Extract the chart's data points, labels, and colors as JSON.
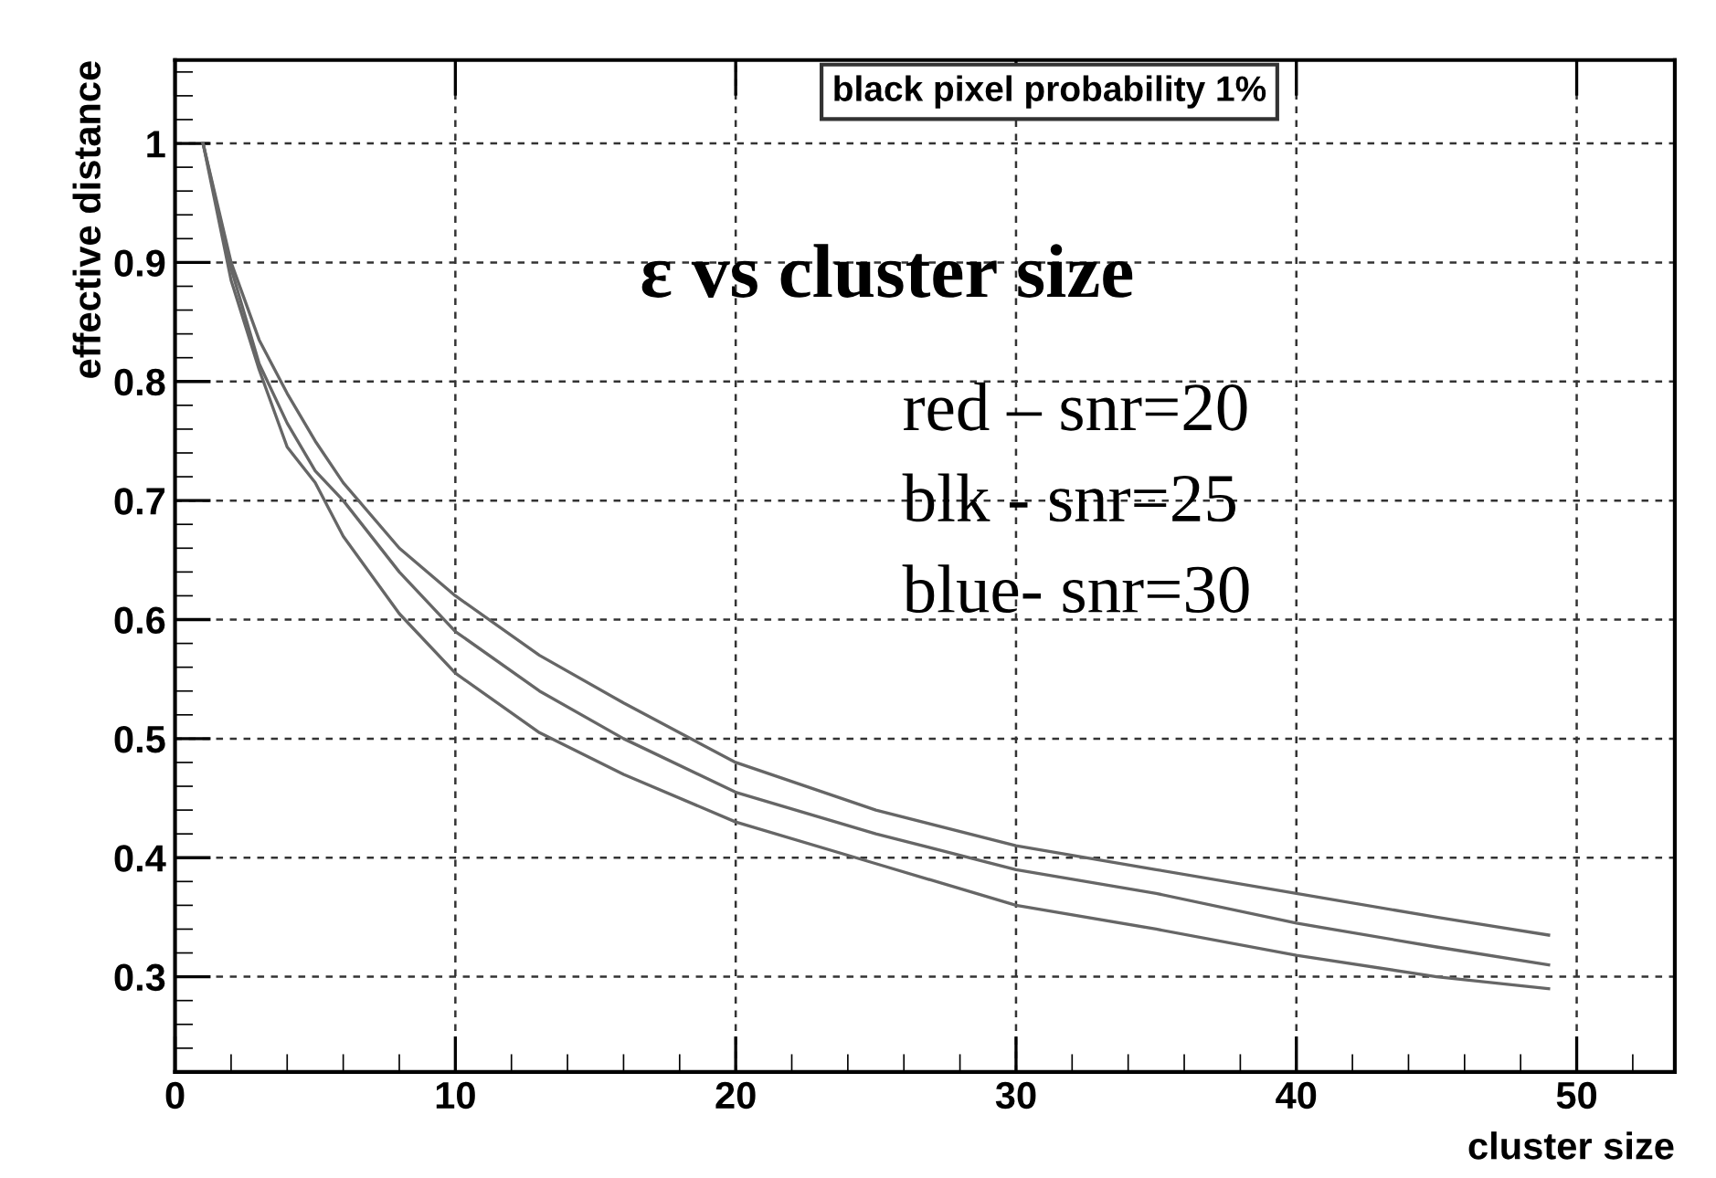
{
  "chart_data": {
    "type": "line",
    "title": "black pixel probability 1%",
    "xlabel": "cluster size",
    "ylabel": "effective distance",
    "annotations": [
      "ε vs cluster size",
      "red – snr=20",
      "blk - snr=25",
      "blue- snr=30"
    ],
    "x": [
      1,
      2,
      3,
      4,
      5,
      6,
      8,
      10,
      13,
      16,
      20,
      25,
      30,
      35,
      40,
      45,
      49
    ],
    "series": [
      {
        "color": "#666666",
        "values": [
          1,
          0.9,
          0.835,
          0.79,
          0.75,
          0.715,
          0.66,
          0.62,
          0.57,
          0.53,
          0.48,
          0.44,
          0.41,
          0.39,
          0.37,
          0.35,
          0.335
        ]
      },
      {
        "color": "#666666",
        "values": [
          1,
          0.895,
          0.815,
          0.765,
          0.725,
          0.7,
          0.64,
          0.59,
          0.54,
          0.5,
          0.455,
          0.42,
          0.39,
          0.37,
          0.345,
          0.325,
          0.31
        ]
      },
      {
        "color": "#666666",
        "values": [
          1,
          0.885,
          0.81,
          0.745,
          0.715,
          0.67,
          0.605,
          0.555,
          0.505,
          0.47,
          0.43,
          0.395,
          0.36,
          0.34,
          0.318,
          0.3,
          0.29
        ]
      }
    ],
    "xlim": [
      0,
      53.5
    ],
    "ylim": [
      0.22,
      1.07
    ],
    "xticks": [
      0,
      10,
      20,
      30,
      40,
      50
    ],
    "yticks": [
      0.3,
      0.4,
      0.5,
      0.6,
      0.7,
      0.8,
      0.9,
      1
    ],
    "grid": true,
    "line_style": "solid"
  }
}
